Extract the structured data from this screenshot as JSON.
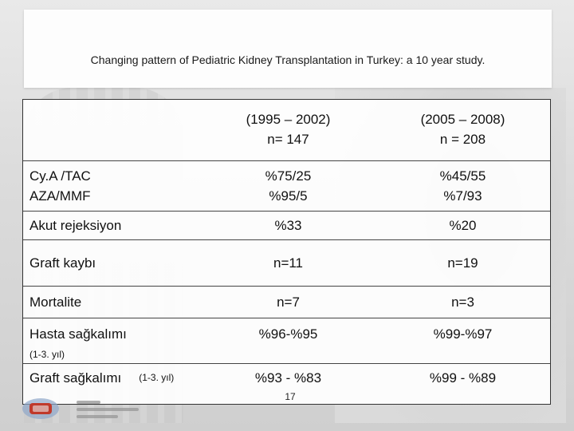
{
  "slide": {
    "title": "Changing pattern of Pediatric Kidney Transplantation in Turkey: a 10 year study.",
    "page_number": "17"
  },
  "table": {
    "headers": [
      {
        "line1": "(1995 – 2002)",
        "line2": "n= 147"
      },
      {
        "line1": "(2005 – 2008)",
        "line2": "n = 208"
      }
    ],
    "rows": [
      {
        "label1": "Cy.A /TAC",
        "label2": "AZA/MMF",
        "v1_line1": "%75/25",
        "v1_line2": "%95/5",
        "v2_line1": "%45/55",
        "v2_line2": "%7/93"
      },
      {
        "label": "Akut rejeksiyon",
        "v1": "%33",
        "v2": "%20"
      },
      {
        "label": "Graft kaybı",
        "v1": "n=11",
        "v2": "n=19"
      },
      {
        "label": "Mortalite",
        "v1": "n=7",
        "v2": "n=3"
      },
      {
        "label": "Hasta sağkalımı",
        "sub": "(1-3. yıl)",
        "v1": "%96-%95",
        "v2": "%99-%97"
      },
      {
        "label": "Graft sağkalımı",
        "sub": "(1-3. yıl)",
        "v1": "%93 - %83",
        "v2": "%99 - %89"
      }
    ]
  },
  "logo": {
    "icon": "hospital-logo-icon",
    "color": "#c0392b"
  }
}
